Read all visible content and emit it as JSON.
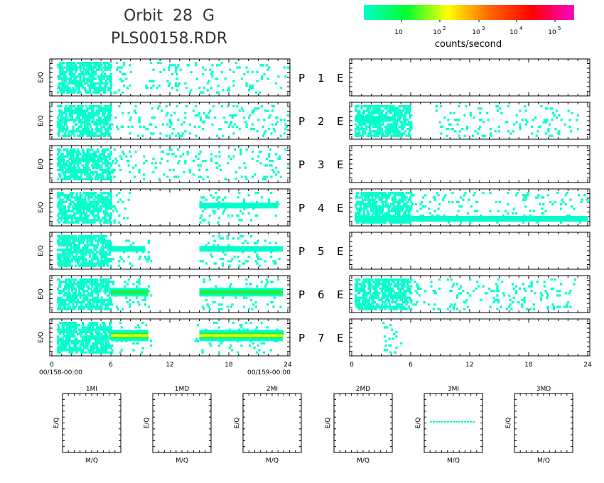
{
  "figure": {
    "title_line1": "Orbit  28  G",
    "title_line2": "PLS00158.RDR"
  },
  "colorbar": {
    "label": "counts/second",
    "gradient_colors": [
      "#00ffcc",
      "#00ff33",
      "#ffff00",
      "#ff6600",
      "#ff0000",
      "#ff00cc"
    ],
    "ticks": [
      {
        "base": "10",
        "exp": ""
      },
      {
        "base": "10",
        "exp": "2"
      },
      {
        "base": "10",
        "exp": "3"
      },
      {
        "base": "10",
        "exp": "4"
      },
      {
        "base": "10",
        "exp": "5"
      }
    ]
  },
  "chart_data": [
    {
      "type": "heatmap",
      "name": "E/Q spectrograms, P sensors 1-7 (left column)",
      "ylabel": "E/Q",
      "x_range_hours": [
        0,
        24
      ],
      "x_ticks": [
        "0",
        "6",
        "12",
        "18",
        "24"
      ],
      "x_start_label": "00/158-00:00",
      "x_end_label": "00/159-00:00",
      "color_scale": "log counts/second",
      "panels": [
        {
          "sensor": "P",
          "index": "1",
          "active_spans_hours": [
            [
              0.5,
              8.0
            ],
            [
              9.5,
              24
            ]
          ],
          "dense_span_hours": [
            0.5,
            6.0
          ],
          "bands": []
        },
        {
          "sensor": "P",
          "index": "2",
          "active_spans_hours": [
            [
              0.5,
              24
            ]
          ],
          "dense_span_hours": [
            0.5,
            6.0
          ],
          "bands": []
        },
        {
          "sensor": "P",
          "index": "3",
          "active_spans_hours": [
            [
              0.5,
              24
            ]
          ],
          "dense_span_hours": [
            0.5,
            6.0
          ],
          "bands": []
        },
        {
          "sensor": "P",
          "index": "4",
          "active_spans_hours": [
            [
              0.5,
              8.0
            ],
            [
              15.0,
              23.0
            ]
          ],
          "dense_span_hours": [
            0.5,
            6.0
          ],
          "bands": [
            {
              "span_hours": [
                15.0,
                23.0
              ],
              "level": "cyan"
            }
          ]
        },
        {
          "sensor": "P",
          "index": "5",
          "active_spans_hours": [
            [
              0.5,
              10.0
            ],
            [
              15.0,
              23.5
            ]
          ],
          "dense_span_hours": [
            0.5,
            6.0
          ],
          "bands": [
            {
              "span_hours": [
                6.0,
                9.5
              ],
              "level": "cyan"
            },
            {
              "span_hours": [
                15.0,
                23.5
              ],
              "level": "cyan"
            }
          ]
        },
        {
          "sensor": "P",
          "index": "6",
          "active_spans_hours": [
            [
              0.5,
              10.0
            ],
            [
              15.0,
              23.5
            ]
          ],
          "dense_span_hours": [
            0.5,
            6.0
          ],
          "bands": [
            {
              "span_hours": [
                6.0,
                9.8
              ],
              "level": "green"
            },
            {
              "span_hours": [
                15.0,
                23.5
              ],
              "level": "green"
            }
          ]
        },
        {
          "sensor": "P",
          "index": "7",
          "active_spans_hours": [
            [
              0.5,
              10.0
            ],
            [
              14.5,
              23.5
            ]
          ],
          "dense_span_hours": [
            0.5,
            6.0
          ],
          "bands": [
            {
              "span_hours": [
                6.0,
                9.8
              ],
              "level": "yellow"
            },
            {
              "span_hours": [
                15.0,
                23.5
              ],
              "level": "yellow"
            }
          ]
        }
      ]
    },
    {
      "type": "heatmap",
      "name": "E/Q spectrograms, E sensors 1-7 (right column)",
      "ylabel": "",
      "x_range_hours": [
        0,
        24
      ],
      "x_ticks": [
        "0",
        "6",
        "12",
        "18",
        "24"
      ],
      "color_scale": "log counts/second",
      "panels": [
        {
          "sensor": "E",
          "index": "1",
          "active_spans_hours": [],
          "bands": []
        },
        {
          "sensor": "E",
          "index": "2",
          "active_spans_hours": [
            [
              0.3,
              6.0
            ],
            [
              8.5,
              23.0
            ]
          ],
          "dense_span_hours": [
            0.3,
            6.0
          ],
          "bands": [
            {
              "span_hours": [
                0.3,
                4.0
              ],
              "level": "cyan"
            }
          ]
        },
        {
          "sensor": "E",
          "index": "3",
          "active_spans_hours": [],
          "bands": []
        },
        {
          "sensor": "E",
          "index": "4",
          "active_spans_hours": [
            [
              0.3,
              24
            ]
          ],
          "dense_span_hours": [
            0.3,
            6.0
          ],
          "bands": [
            {
              "span_hours": [
                0.3,
                24
              ],
              "level": "cyan-low"
            }
          ]
        },
        {
          "sensor": "E",
          "index": "5",
          "active_spans_hours": [],
          "bands": []
        },
        {
          "sensor": "E",
          "index": "6",
          "active_spans_hours": [
            [
              0.3,
              23.0
            ]
          ],
          "dense_span_hours": [
            0.3,
            6.0
          ],
          "bands": []
        },
        {
          "sensor": "E",
          "index": "7",
          "active_spans_hours": [
            [
              3.0,
              5.0
            ]
          ],
          "bands": []
        }
      ]
    },
    {
      "type": "heatmap",
      "name": "M/Q vs E/Q panels",
      "xlabel": "M/Q",
      "ylabel": "E/Q",
      "panels": [
        {
          "label": "1MI",
          "has_data": false
        },
        {
          "label": "1MD",
          "has_data": false
        },
        {
          "label": "2MI",
          "has_data": false
        },
        {
          "label": "2MD",
          "has_data": false
        },
        {
          "label": "3MI",
          "has_data": true,
          "feature": "horizontal cyan line"
        },
        {
          "label": "3MD",
          "has_data": false
        }
      ]
    }
  ]
}
